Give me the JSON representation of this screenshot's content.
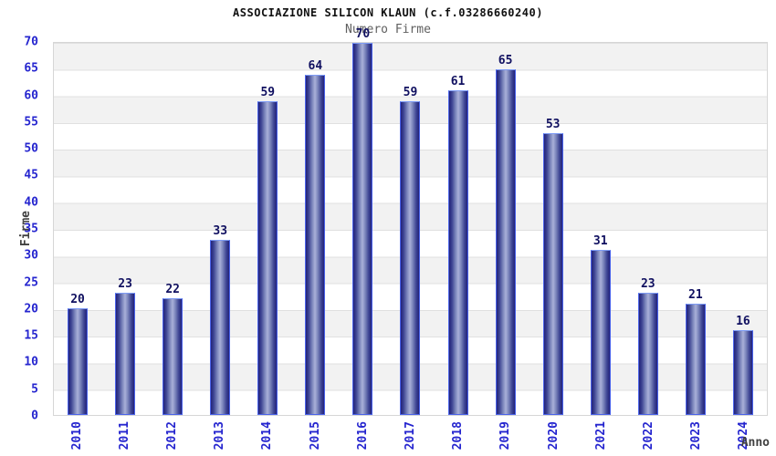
{
  "header": {
    "title": "ASSOCIAZIONE SILICON KLAUN (c.f.03286660240)",
    "subtitle": "Numero Firme"
  },
  "chart_data": {
    "type": "bar",
    "title": "ASSOCIAZIONE SILICON KLAUN (c.f.03286660240)",
    "subtitle": "Numero Firme",
    "categories": [
      "2010",
      "2011",
      "2012",
      "2013",
      "2014",
      "2015",
      "2016",
      "2017",
      "2018",
      "2019",
      "2020",
      "2021",
      "2022",
      "2023",
      "2024"
    ],
    "values": [
      20,
      23,
      22,
      33,
      59,
      64,
      70,
      59,
      61,
      65,
      53,
      31,
      23,
      21,
      16
    ],
    "xlabel": "Anno",
    "ylabel": "Firme",
    "ylim": [
      0,
      70
    ],
    "ytick_step": 5,
    "grid": "horizontal-bands-alternating",
    "legend": "none",
    "colors": {
      "bar_edge": "#23237a",
      "bar_center": "#a9b0d9",
      "bar_outline": "#4a63ea",
      "tick_label": "#2525cf",
      "value_label": "#101060",
      "axis_title": "#404040",
      "band_gray": "#f2f2f2",
      "band_white": "#ffffff",
      "plot_border": "#d6d6d6"
    }
  }
}
